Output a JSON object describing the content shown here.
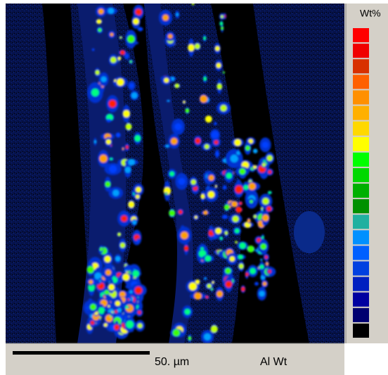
{
  "legend": {
    "title": "Wt%"
  },
  "scale_bar": {
    "label": "50. µm"
  },
  "map_label": "Al Wt"
}
